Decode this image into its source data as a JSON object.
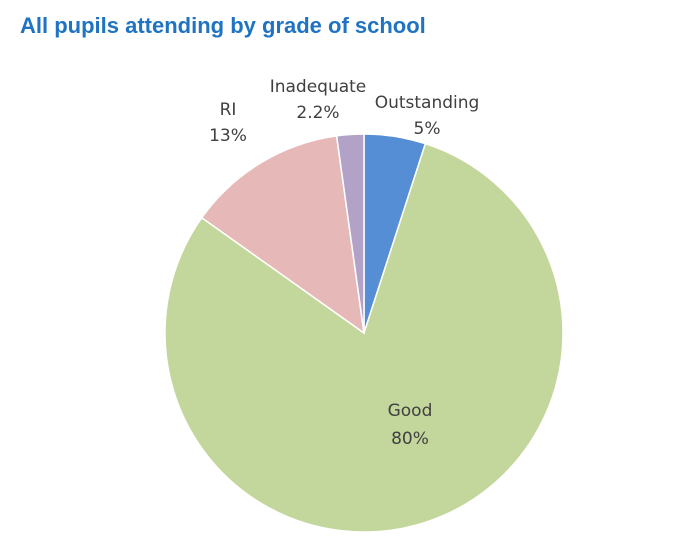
{
  "chart_data": {
    "type": "pie",
    "title": "All pupils attending by grade of school",
    "title_color": "#1f73c2",
    "start_angle_deg": 0,
    "direction": "clockwise",
    "slices": [
      {
        "category": "Outstanding",
        "value": 5,
        "label": "5%",
        "color": "#558ed5"
      },
      {
        "category": "Good",
        "value": 80,
        "label": "80%",
        "color": "#c3d69b"
      },
      {
        "category": "RI",
        "value": 13,
        "label": "13%",
        "color": "#e6b9b8"
      },
      {
        "category": "Inadequate",
        "value": 2.2,
        "label": "2.2%",
        "color": "#b3a2c7"
      }
    ],
    "data_labels": "category and percentage",
    "legend": "none"
  }
}
